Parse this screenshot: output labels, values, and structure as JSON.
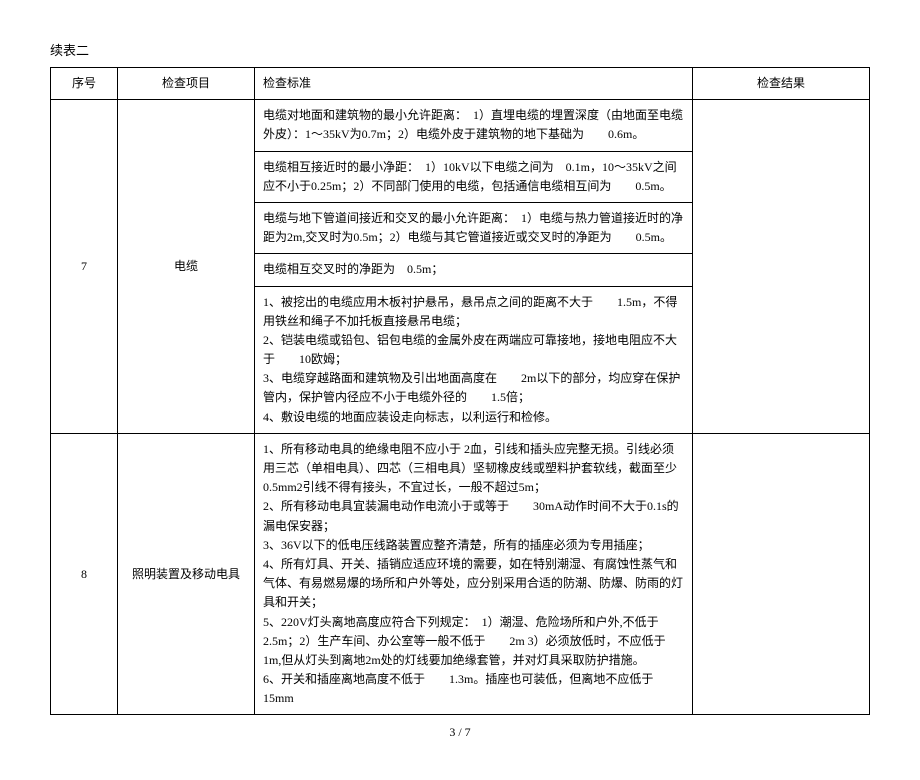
{
  "subtitle": "续表二",
  "headers": {
    "seq": "序号",
    "item": "检查项目",
    "std": "检查标准",
    "result": "检查结果"
  },
  "rows": [
    {
      "seq": "7",
      "item": "电缆",
      "standards": [
        "电缆对地面和建筑物的最小允许距离：　1）直埋电缆的埋置深度（由地面至电缆外皮）：1～35kV为0.7m；2）电缆外皮于建筑物的地下基础为　　0.6m。",
        "电缆相互接近时的最小净距：　1）10kV以下电缆之间为　0.1m，10～35kV之间应不小于0.25m；2）不同部门使用的电缆，包括通信电缆相互间为　　0.5m。",
        "电缆与地下管道间接近和交叉的最小允许距离：　1）电缆与热力管道接近时的净距为2m,交叉时为0.5m；2）电缆与其它管道接近或交叉时的净距为　　0.5m。",
        "电缆相互交叉时的净距为　0.5m；",
        "1、被挖出的电缆应用木板衬护悬吊，悬吊点之间的距离不大于　　1.5m，不得用铁丝和绳子不加托板直接悬吊电缆；\n2、铠装电缆或铅包、铝包电缆的金属外皮在两端应可靠接地，接地电阻应不大于　　10欧姆；\n3、电缆穿越路面和建筑物及引出地面高度在　　2m以下的部分，均应穿在保护管内，保护管内径应不小于电缆外径的　　1.5倍；\n4、敷设电缆的地面应装设走向标志，以利运行和检修。"
      ]
    },
    {
      "seq": "8",
      "item": "照明装置及移动电具",
      "standards": [
        "1、所有移动电具的绝缘电阻不应小于 2血，引线和插头应完整无损。引线必须用三芯（单相电具）、四芯（三相电具）坚韧橡皮线或塑料护套软线，截面至少　　0.5mm2引线不得有接头，不宜过长，一般不超过5m；\n2、所有移动电具宜装漏电动作电流小于或等于　　30mA动作时间不大于0.1s的漏电保安器；\n3、36V以下的低电压线路装置应整齐清楚，所有的插座必须为专用插座；\n4、所有灯具、开关、插销应适应环境的需要，如在特别潮湿、有腐蚀性蒸气和气体、有易燃易爆的场所和户外等处，应分别采用合适的防潮、防爆、防雨的灯具和开关；\n5、220V灯头离地高度应符合下列规定：　1）潮湿、危险场所和户外,不低于2.5m；2）生产车间、办公室等一般不低于　　2m 3）必须放低时，不应低于 1m,但从灯头到离地2m处的灯线要加绝缘套管，并对灯具采取防护措施。\n6、开关和插座离地高度不低于　　1.3m。插座也可装低，但离地不应低于　　15mm"
      ]
    }
  ],
  "footer": "3 / 7"
}
